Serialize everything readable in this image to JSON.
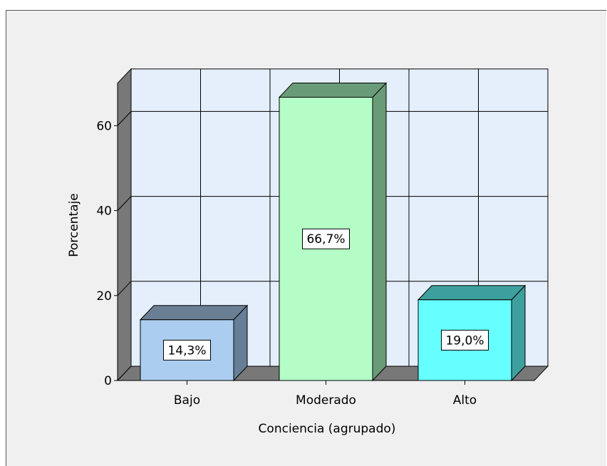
{
  "chart_data": {
    "type": "bar",
    "style": "3d",
    "categories": [
      "Bajo",
      "Moderado",
      "Alto"
    ],
    "values": [
      14.3,
      66.7,
      19.0
    ],
    "data_labels": [
      "14,3%",
      "66,7%",
      "19,0%"
    ],
    "xlabel": "Conciencia (agrupado)",
    "ylabel": "Porcentaje",
    "ylim": [
      0,
      70
    ],
    "yticks": [
      0,
      20,
      40,
      60
    ],
    "grid": true,
    "colors": {
      "bars": [
        "#abcef0",
        "#b5fdc6",
        "#66ffff"
      ],
      "bar_tops": [
        "#6a7f94",
        "#6a9b79",
        "#3ca09e"
      ],
      "bar_sides": [
        "#667f97",
        "#6a9b78",
        "#3da09f"
      ],
      "plot_background": "#e4effb",
      "walls": "#787878",
      "page_background": "#f0f0f0"
    }
  }
}
